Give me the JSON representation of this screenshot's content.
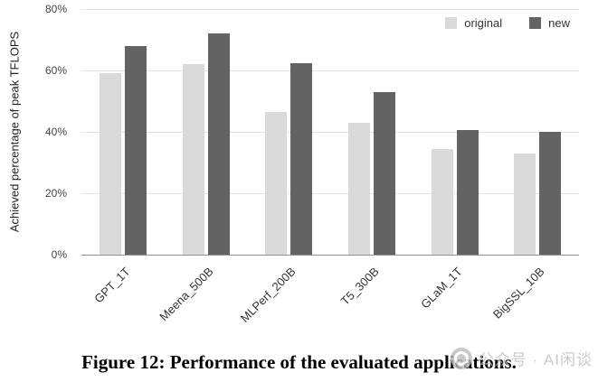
{
  "chart_data": {
    "type": "bar",
    "title": "",
    "categories": [
      "GPT_1T",
      "Meena_500B",
      "MLPerf_200B",
      "T5_300B",
      "GLaM_1T",
      "BigSSL_10B"
    ],
    "series": [
      {
        "name": "original",
        "color": "#d9d9d9",
        "values": [
          59,
          62,
          46.5,
          43,
          34.5,
          33
        ]
      },
      {
        "name": "new",
        "color": "#636363",
        "values": [
          68,
          72,
          62.5,
          53,
          40.5,
          40
        ]
      }
    ],
    "xlabel": "",
    "ylabel": "Achieved percentage of peak TFLOPS",
    "ylim": [
      0,
      80
    ],
    "yticks": [
      0,
      20,
      40,
      60,
      80
    ],
    "ytick_labels": [
      "0%",
      "20%",
      "40%",
      "60%",
      "80%"
    ],
    "grid": true,
    "legend_position": "top-right"
  },
  "caption": "Figure 12: Performance of the evaluated applications.",
  "watermark": {
    "logo_icon": "circle-logo-icon",
    "text": "公众号 · AI闲谈"
  }
}
